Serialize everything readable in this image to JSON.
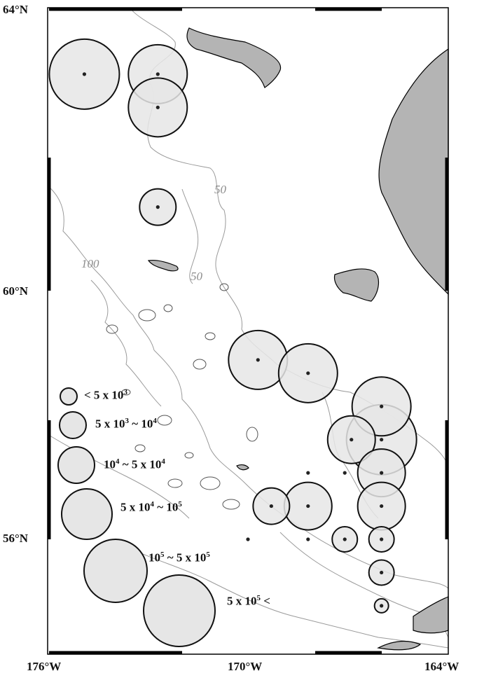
{
  "map": {
    "latitude_labels": [
      "64°N",
      "60°N",
      "56°N"
    ],
    "longitude_labels": [
      "176°W",
      "170°W",
      "164°W"
    ],
    "contour_labels": [
      "50",
      "100",
      "50"
    ],
    "colors": {
      "land": "#b4b4b4",
      "circle_fill": "#e6e6e6",
      "contour": "#9a9a9a",
      "frame": "#000000"
    }
  },
  "stations": [
    {
      "lon": -174.9,
      "lat": 63.0,
      "class": 5
    },
    {
      "lon": -172.7,
      "lat": 63.0,
      "class": 4
    },
    {
      "lon": -172.7,
      "lat": 62.5,
      "class": 4
    },
    {
      "lon": -172.7,
      "lat": 61.0,
      "class": 2
    },
    {
      "lon": -169.7,
      "lat": 58.7,
      "class": 4
    },
    {
      "lon": -168.2,
      "lat": 58.5,
      "class": 4
    },
    {
      "lon": -166.0,
      "lat": 58.0,
      "class": 4
    },
    {
      "lon": -166.9,
      "lat": 57.5,
      "class": 3
    },
    {
      "lon": -166.0,
      "lat": 57.5,
      "class": 5
    },
    {
      "lon": -166.0,
      "lat": 57.0,
      "class": 3
    },
    {
      "lon": -166.0,
      "lat": 56.5,
      "class": 3
    },
    {
      "lon": -168.2,
      "lat": 56.5,
      "class": 3
    },
    {
      "lon": -169.3,
      "lat": 56.5,
      "class": 2
    },
    {
      "lon": -167.1,
      "lat": 56.0,
      "class": 1
    },
    {
      "lon": -166.0,
      "lat": 56.0,
      "class": 1
    },
    {
      "lon": -166.0,
      "lat": 55.5,
      "class": 1
    },
    {
      "lon": -166.0,
      "lat": 55.0,
      "class": 0
    },
    {
      "lon": -170.0,
      "lat": 56.0,
      "class": -1
    },
    {
      "lon": -168.2,
      "lat": 56.0,
      "class": -1
    },
    {
      "lon": -168.2,
      "lat": 57.0,
      "class": -1
    },
    {
      "lon": -167.1,
      "lat": 57.0,
      "class": -1
    }
  ],
  "legend": [
    {
      "base": "< 5 x 10",
      "exp": "3",
      "rest": "",
      "exp2": "",
      "tail": ""
    },
    {
      "base": "5 x 10",
      "exp": "3",
      "rest": " ~ 10",
      "exp2": "4",
      "tail": ""
    },
    {
      "base": "10",
      "exp": "4",
      "rest": " ~ 5 x 10",
      "exp2": "4",
      "tail": ""
    },
    {
      "base": "5 x 10",
      "exp": "4",
      "rest": " ~ 10",
      "exp2": "5",
      "tail": ""
    },
    {
      "base": "10",
      "exp": "5",
      "rest": " ~ 5 x 10",
      "exp2": "5",
      "tail": ""
    },
    {
      "base": "5 x 10",
      "exp": "5",
      "rest": "",
      "exp2": "",
      "tail": " <"
    }
  ]
}
